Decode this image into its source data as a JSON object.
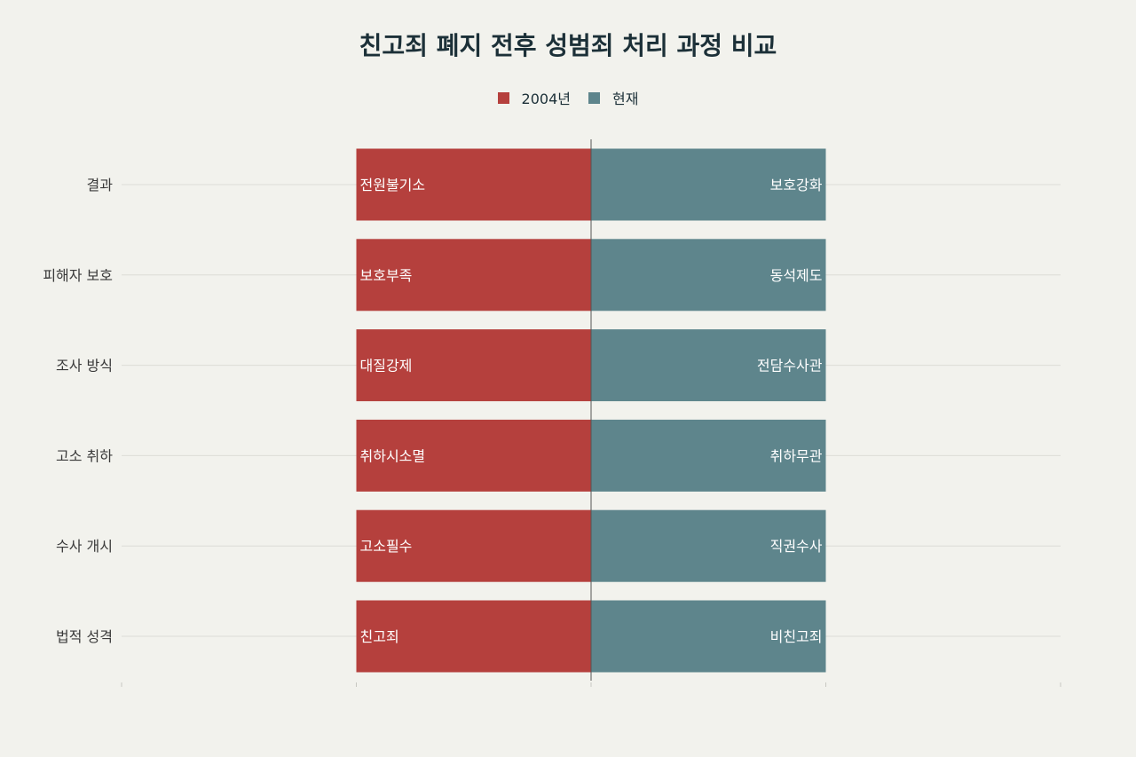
{
  "chart_data": {
    "type": "bar",
    "orientation": "horizontal-diverging",
    "title": "친고죄 폐지 전후 성범죄 처리 과정 비교",
    "categories": [
      "결과",
      "피해자 보호",
      "조사 방식",
      "고소 취하",
      "수사 개시",
      "법적 성격"
    ],
    "series": [
      {
        "name": "2004년",
        "color": "#b5403d",
        "values": [
          -1,
          -1,
          -1,
          -1,
          -1,
          -1
        ],
        "labels": [
          "전원불기소",
          "보호부족",
          "대질강제",
          "취하시소멸",
          "고소필수",
          "친고죄"
        ]
      },
      {
        "name": "현재",
        "color": "#5e858c",
        "values": [
          1,
          1,
          1,
          1,
          1,
          1
        ],
        "labels": [
          "보호강화",
          "동석제도",
          "전담수사관",
          "취하무관",
          "직권수사",
          "비친고죄"
        ]
      }
    ],
    "xlim": [
      -2,
      2
    ],
    "grid": true,
    "legend_position": "top-center"
  }
}
